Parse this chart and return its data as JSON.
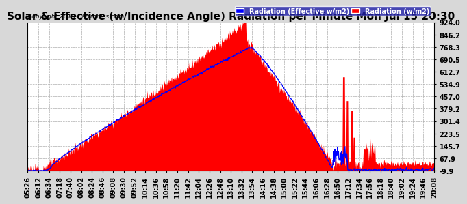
{
  "title": "Solar & Effective (w/Incidence Angle) Radiation per Minute Mon Jul 15 20:30",
  "copyright": "Copyright 2013 Cartronics.com",
  "legend_labels": [
    "Radiation (Effective w/m2)",
    "Radiation (w/m2)"
  ],
  "legend_colors": [
    "#0000ff",
    "#ff0000"
  ],
  "legend_bg_colors": [
    "#0000aa",
    "#cc0000"
  ],
  "ytick_labels": [
    "924.0",
    "846.2",
    "768.3",
    "690.5",
    "612.7",
    "534.9",
    "457.0",
    "379.2",
    "301.4",
    "223.5",
    "145.7",
    "67.9",
    "-9.9"
  ],
  "ytick_values": [
    924.0,
    846.2,
    768.3,
    690.5,
    612.7,
    534.9,
    457.0,
    379.2,
    301.4,
    223.5,
    145.7,
    67.9,
    -9.9
  ],
  "ymin": -9.9,
  "ymax": 924.0,
  "background_color": "#d8d8d8",
  "plot_bg_color": "#ffffff",
  "grid_color": "#999999",
  "fill_color": "#ff0000",
  "line_color": "#0000ff",
  "title_fontsize": 11,
  "tick_fontsize": 7,
  "xtick_labels": [
    "05:26",
    "06:12",
    "06:34",
    "07:18",
    "07:40",
    "08:02",
    "08:24",
    "08:46",
    "09:08",
    "09:30",
    "09:52",
    "10:14",
    "10:36",
    "10:58",
    "11:20",
    "11:42",
    "12:04",
    "12:26",
    "12:48",
    "13:10",
    "13:32",
    "13:54",
    "14:16",
    "14:38",
    "15:00",
    "15:22",
    "15:44",
    "16:06",
    "16:28",
    "16:50",
    "17:12",
    "17:34",
    "17:56",
    "18:18",
    "18:40",
    "19:02",
    "19:24",
    "19:46",
    "20:08"
  ]
}
